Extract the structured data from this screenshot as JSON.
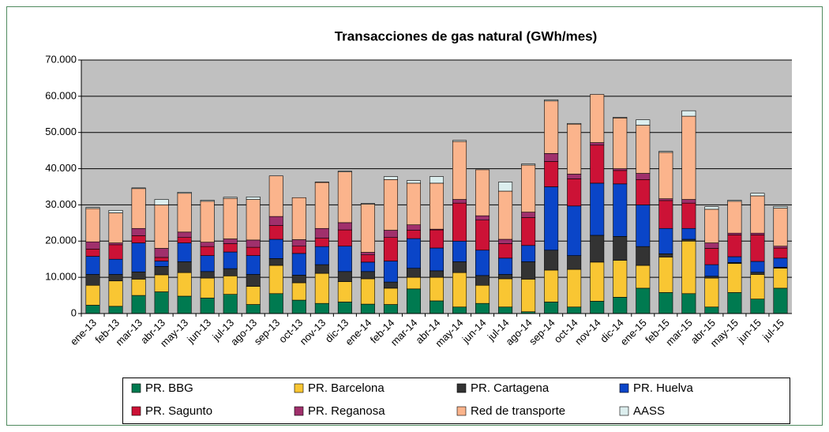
{
  "chart_data": {
    "type": "stacked-bar",
    "title": "Transacciones de gas natural (GWh/mes)",
    "categories": [
      "ene-13",
      "feb-13",
      "mar-13",
      "abr-13",
      "may-13",
      "jun-13",
      "jul-13",
      "ago-13",
      "sep-13",
      "oct-13",
      "nov-13",
      "dic-13",
      "ene-14",
      "feb-14",
      "mar-14",
      "abr-14",
      "may-14",
      "jun-14",
      "jul-14",
      "ago-14",
      "sep-14",
      "oct-14",
      "nov-14",
      "dic-14",
      "ene-15",
      "feb-15",
      "mar-15",
      "abr-15",
      "may-15",
      "jun-15",
      "jul-15"
    ],
    "series": [
      {
        "name": "PR. BBG",
        "color": "#007a50",
        "values": [
          2300,
          2000,
          5000,
          6000,
          4800,
          4300,
          5300,
          2500,
          5500,
          3700,
          2800,
          3200,
          2600,
          2500,
          6800,
          3500,
          1800,
          2800,
          1800,
          500,
          3200,
          1800,
          3400,
          4500,
          7000,
          5800,
          5500,
          1800,
          5800,
          4000,
          7000
        ]
      },
      {
        "name": "PR. Barcelona",
        "color": "#f9c633",
        "values": [
          5500,
          7000,
          4500,
          4700,
          6500,
          5500,
          5100,
          5000,
          7800,
          4800,
          8300,
          5600,
          7000,
          4500,
          3200,
          6500,
          9500,
          5000,
          7800,
          9000,
          8800,
          10400,
          10800,
          10200,
          6300,
          9800,
          14500,
          8000,
          8000,
          6800,
          5500
        ]
      },
      {
        "name": "PR. Cartagena",
        "color": "#333333",
        "values": [
          3000,
          1800,
          2000,
          2300,
          3000,
          1800,
          2000,
          3300,
          1900,
          2100,
          2400,
          2800,
          2000,
          1700,
          2500,
          1800,
          3000,
          2700,
          1200,
          4800,
          5500,
          3800,
          7400,
          6600,
          5200,
          900,
          500,
          500,
          300,
          600,
          300
        ]
      },
      {
        "name": "PR. Huelva",
        "color": "#0a45c8",
        "values": [
          5000,
          4200,
          8000,
          1500,
          5200,
          4400,
          4600,
          5200,
          5300,
          6000,
          5000,
          7000,
          2600,
          5800,
          8200,
          6300,
          5700,
          7000,
          4500,
          4500,
          17500,
          13700,
          14400,
          14500,
          11500,
          7000,
          3000,
          3200,
          1600,
          3000,
          2500
        ]
      },
      {
        "name": "PR. Sagunto",
        "color": "#cc1236",
        "values": [
          2000,
          4000,
          2000,
          1000,
          1500,
          2500,
          2300,
          2300,
          3800,
          2000,
          2300,
          4500,
          2000,
          6500,
          2300,
          5000,
          10500,
          8300,
          4000,
          7700,
          7000,
          7500,
          10500,
          3700,
          7000,
          7700,
          7000,
          4500,
          6000,
          7300,
          2800
        ]
      },
      {
        "name": "PR. Reganosa",
        "color": "#a0306c",
        "values": [
          2000,
          500,
          2000,
          2500,
          1500,
          1200,
          1300,
          2000,
          2500,
          1800,
          2700,
          2000,
          700,
          2000,
          1500,
          200,
          1000,
          1200,
          1200,
          1500,
          2200,
          1300,
          700,
          500,
          1700,
          500,
          1000,
          1500,
          500,
          500,
          500
        ]
      },
      {
        "name": "Red de transporte",
        "color": "#fbb48c",
        "values": [
          9200,
          8300,
          11000,
          12000,
          10700,
          11300,
          11200,
          11200,
          11200,
          11600,
          12700,
          14000,
          13300,
          14000,
          11500,
          12700,
          16000,
          12700,
          13300,
          13000,
          14500,
          13800,
          13300,
          14000,
          13300,
          12800,
          23000,
          9300,
          8800,
          10300,
          10500
        ]
      },
      {
        "name": "AASS",
        "color": "#dceeee",
        "values": [
          300,
          700,
          200,
          1500,
          300,
          300,
          300,
          700,
          0,
          0,
          100,
          200,
          200,
          800,
          700,
          1800,
          300,
          0,
          2500,
          300,
          300,
          200,
          0,
          200,
          1500,
          300,
          1500,
          700,
          300,
          700,
          500
        ]
      }
    ],
    "ylim": [
      0,
      70000
    ],
    "yticks": [
      {
        "value": 0,
        "label": "0"
      },
      {
        "value": 10000,
        "label": "10.000"
      },
      {
        "value": 20000,
        "label": "20.000"
      },
      {
        "value": 30000,
        "label": "30.000"
      },
      {
        "value": 40000,
        "label": "40.000"
      },
      {
        "value": 50000,
        "label": "50.000"
      },
      {
        "value": 60000,
        "label": "60.000"
      },
      {
        "value": 70000,
        "label": "70.000"
      }
    ],
    "grid": true,
    "legend": "bottom"
  }
}
